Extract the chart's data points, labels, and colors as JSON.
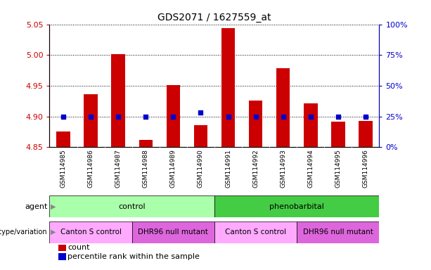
{
  "title": "GDS2071 / 1627559_at",
  "samples": [
    "GSM114985",
    "GSM114986",
    "GSM114987",
    "GSM114988",
    "GSM114989",
    "GSM114990",
    "GSM114991",
    "GSM114992",
    "GSM114993",
    "GSM114994",
    "GSM114995",
    "GSM114996"
  ],
  "counts": [
    4.876,
    4.936,
    5.001,
    4.862,
    4.951,
    4.886,
    5.044,
    4.926,
    4.978,
    4.921,
    4.892,
    4.893
  ],
  "percentile_ranks": [
    25,
    25,
    25,
    25,
    25,
    28,
    25,
    25,
    25,
    25,
    25,
    25
  ],
  "ylim_left": [
    4.85,
    5.05
  ],
  "ylim_right": [
    0,
    100
  ],
  "yticks_left": [
    4.85,
    4.9,
    4.95,
    5.0,
    5.05
  ],
  "yticks_right": [
    0,
    25,
    50,
    75,
    100
  ],
  "ytick_labels_right": [
    "0%",
    "25%",
    "50%",
    "75%",
    "100%"
  ],
  "bar_color": "#cc0000",
  "dot_color": "#0000cc",
  "agent_groups": [
    {
      "label": "control",
      "start": 0,
      "end": 5,
      "color": "#aaffaa"
    },
    {
      "label": "phenobarbital",
      "start": 6,
      "end": 11,
      "color": "#44cc44"
    }
  ],
  "genotype_groups": [
    {
      "label": "Canton S control",
      "start": 0,
      "end": 2,
      "color": "#ffaaff"
    },
    {
      "label": "DHR96 null mutant",
      "start": 3,
      "end": 5,
      "color": "#dd66dd"
    },
    {
      "label": "Canton S control",
      "start": 6,
      "end": 8,
      "color": "#ffaaff"
    },
    {
      "label": "DHR96 null mutant",
      "start": 9,
      "end": 11,
      "color": "#dd66dd"
    }
  ],
  "base_value": 4.85,
  "legend_items": [
    {
      "label": "count",
      "color": "#cc0000"
    },
    {
      "label": "percentile rank within the sample",
      "color": "#0000cc"
    }
  ],
  "bg_color": "#ffffff",
  "left_tick_color": "#cc0000",
  "right_tick_color": "#0000cc",
  "tick_bg_color": "#cccccc",
  "chart_border_color": "#888888",
  "agent_light_green": "#bbffbb",
  "agent_dark_green": "#44bb44",
  "geno_light_pink": "#ffccff",
  "geno_dark_pink": "#cc44cc"
}
